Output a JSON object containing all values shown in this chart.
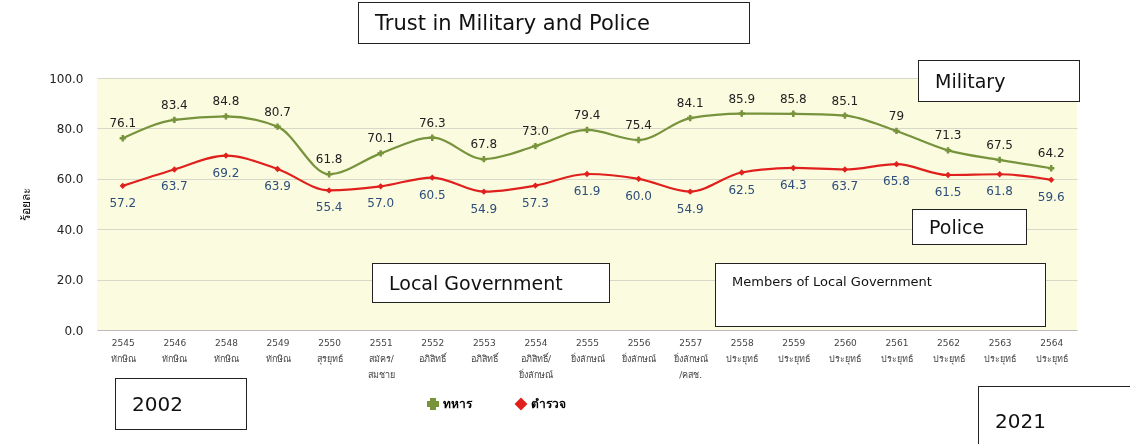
{
  "chart_data": {
    "type": "line",
    "title": "Trust in Military and Police",
    "ylabel": "ร้อยละ",
    "categories": [
      "2545\nทักษิณ",
      "2546\nทักษิณ",
      "2548\nทักษิณ",
      "2549\nทักษิณ",
      "2550\nสุรยุทธ์",
      "2551\nสมัคร/\nสมชาย",
      "2552\nอภิสิทธิ์",
      "2553\nอภิสิทธิ์",
      "2554\nอภิสิทธิ์/\nยิ่งลักษณ์",
      "2555\nยิ่งลักษณ์",
      "2556\nยิ่งลักษณ์",
      "2557\nยิ่งลักษณ์\n/คสช.",
      "2558\nประยุทธ์",
      "2559\nประยุทธ์",
      "2560\nประยุทธ์",
      "2561\nประยุทธ์",
      "2562\nประยุทธ์",
      "2563\nประยุทธ์",
      "2564\nประยุทธ์"
    ],
    "series": [
      {
        "name": "ทหาร",
        "color": "#77933c",
        "marker": "cross",
        "values": [
          76.1,
          83.4,
          84.8,
          80.7,
          61.8,
          70.1,
          76.3,
          67.8,
          73.0,
          79.4,
          75.4,
          84.1,
          85.9,
          85.8,
          85.1,
          79,
          71.3,
          67.5,
          64.2
        ],
        "value_labels": [
          "76.1",
          "83.4",
          "84.8",
          "80.7",
          "61.8",
          "70.1",
          "76.3",
          "67.8",
          "73.0",
          "79.4",
          "75.4",
          "84.1",
          "85.9",
          "85.8",
          "85.1",
          "79",
          "71.3",
          "67.5",
          "64.2"
        ]
      },
      {
        "name": "ตำรวจ",
        "color": "#e0201c",
        "marker": "diamond",
        "values": [
          57.2,
          63.7,
          69.2,
          63.9,
          55.4,
          57.0,
          60.5,
          54.9,
          57.3,
          61.9,
          60.0,
          54.9,
          62.5,
          64.3,
          63.7,
          65.8,
          61.5,
          61.8,
          59.6
        ],
        "value_labels": [
          "57.2",
          "63.7",
          "69.2",
          "63.9",
          "55.4",
          "57.0",
          "60.5",
          "54.9",
          "57.3",
          "61.9",
          "60.0",
          "54.9",
          "62.5",
          "64.3",
          "63.7",
          "65.8",
          "61.5",
          "61.8",
          "59.6"
        ]
      }
    ],
    "ylim": [
      0,
      100
    ],
    "yticks": [
      {
        "value": 0,
        "label": "0.0"
      },
      {
        "value": 20,
        "label": "20.0"
      },
      {
        "value": 40,
        "label": "40.0"
      },
      {
        "value": 60,
        "label": "60.0"
      },
      {
        "value": 80,
        "label": "80.0"
      },
      {
        "value": 100,
        "label": "100.0"
      }
    ],
    "grid": "y",
    "legend": "bottom",
    "annotations": [
      "Military",
      "Police",
      "Local Government",
      "Members of Local Government",
      "2002",
      "2021"
    ]
  }
}
